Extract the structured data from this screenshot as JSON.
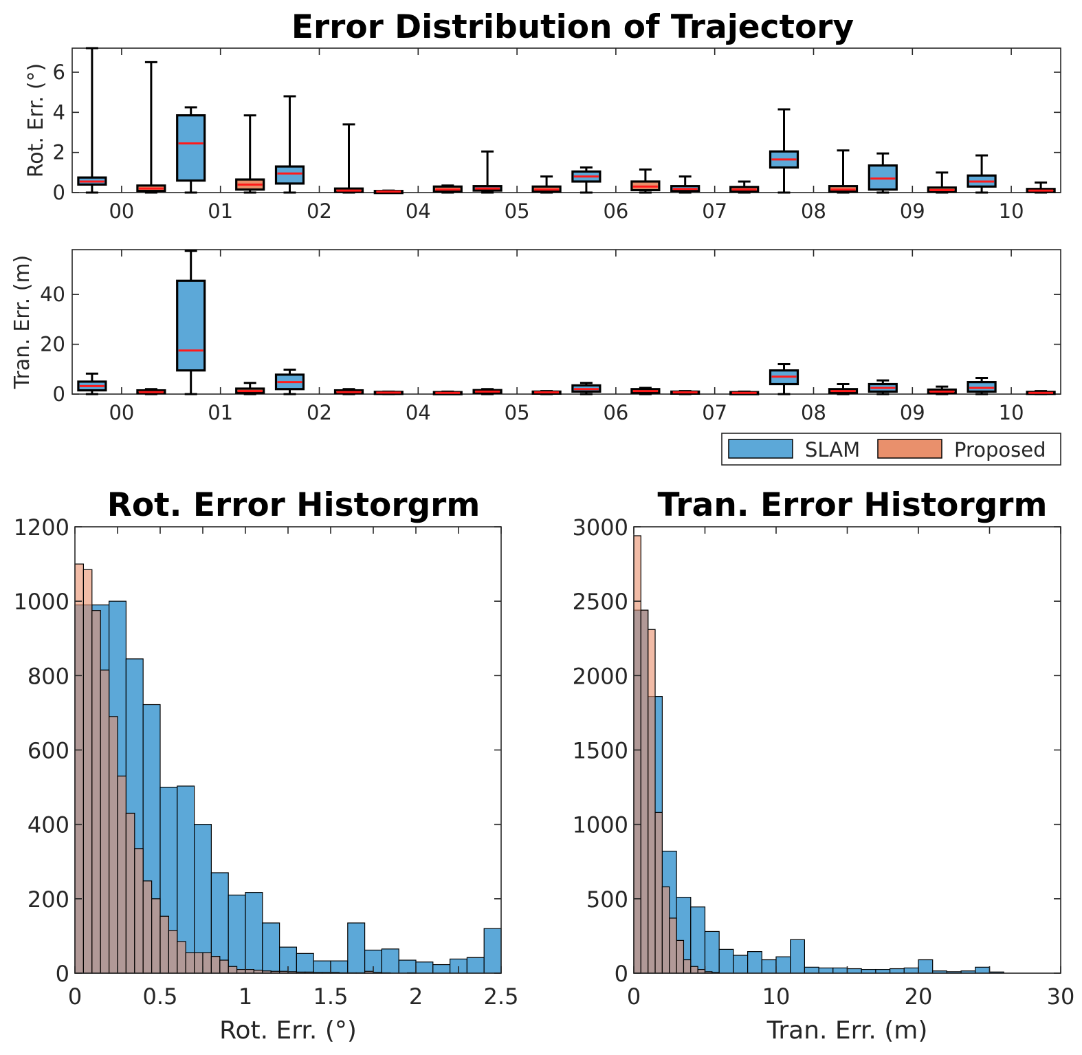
{
  "figure_title": "Error Distribution of Trajectory",
  "colors": {
    "slam": "#5ca8d8",
    "proposed": "#e9906c",
    "overlap": "#a96b5c",
    "median": "#ff1a1a",
    "axis": "#262626"
  },
  "legend": {
    "items": [
      "SLAM",
      "Proposed"
    ],
    "position": "below-right of box plots"
  },
  "chart_data": [
    {
      "type": "box",
      "ylabel": "Rot. Err. (°)",
      "ylim": [
        0,
        7.2
      ],
      "yticks": [
        0,
        2,
        4,
        6
      ],
      "categories": [
        "00",
        "01",
        "02",
        "04",
        "05",
        "06",
        "07",
        "08",
        "09",
        "10"
      ],
      "series": [
        {
          "name": "SLAM",
          "boxes": [
            {
              "min": 0,
              "q1": 0.4,
              "median": 0.55,
              "q3": 0.75,
              "max": 7.2
            },
            {
              "min": 0,
              "q1": 0.6,
              "median": 2.45,
              "q3": 3.85,
              "max": 4.25
            },
            {
              "min": 0,
              "q1": 0.45,
              "median": 0.95,
              "q3": 1.3,
              "max": 4.8
            },
            {
              "min": 0,
              "q1": 0.02,
              "median": 0.05,
              "q3": 0.08,
              "max": 0.1
            },
            {
              "min": 0,
              "q1": 0.1,
              "median": 0.2,
              "q3": 0.32,
              "max": 2.05
            },
            {
              "min": 0,
              "q1": 0.55,
              "median": 0.8,
              "q3": 1.05,
              "max": 1.25
            },
            {
              "min": 0,
              "q1": 0.08,
              "median": 0.18,
              "q3": 0.32,
              "max": 0.8
            },
            {
              "min": 0,
              "q1": 1.25,
              "median": 1.65,
              "q3": 2.05,
              "max": 4.15
            },
            {
              "min": 0,
              "q1": 0.15,
              "median": 0.7,
              "q3": 1.35,
              "max": 1.95
            },
            {
              "min": 0,
              "q1": 0.3,
              "median": 0.55,
              "q3": 0.85,
              "max": 1.85
            }
          ]
        },
        {
          "name": "Proposed",
          "boxes": [
            {
              "min": 0,
              "q1": 0.08,
              "median": 0.2,
              "q3": 0.35,
              "max": 6.5
            },
            {
              "min": 0,
              "q1": 0.15,
              "median": 0.4,
              "q3": 0.65,
              "max": 3.85
            },
            {
              "min": 0,
              "q1": 0.03,
              "median": 0.1,
              "q3": 0.2,
              "max": 3.4
            },
            {
              "min": 0,
              "q1": 0.05,
              "median": 0.15,
              "q3": 0.3,
              "max": 0.35
            },
            {
              "min": 0,
              "q1": 0.05,
              "median": 0.15,
              "q3": 0.3,
              "max": 0.8
            },
            {
              "min": 0,
              "q1": 0.12,
              "median": 0.3,
              "q3": 0.55,
              "max": 1.15
            },
            {
              "min": 0,
              "q1": 0.05,
              "median": 0.15,
              "q3": 0.28,
              "max": 0.55
            },
            {
              "min": 0,
              "q1": 0.05,
              "median": 0.15,
              "q3": 0.32,
              "max": 2.1
            },
            {
              "min": 0,
              "q1": 0.04,
              "median": 0.12,
              "q3": 0.25,
              "max": 1.0
            },
            {
              "min": 0,
              "q1": 0.03,
              "median": 0.1,
              "q3": 0.18,
              "max": 0.5
            }
          ]
        }
      ]
    },
    {
      "type": "box",
      "ylabel": "Tran. Err. (m)",
      "ylim": [
        0,
        58
      ],
      "yticks": [
        0,
        20,
        40
      ],
      "categories": [
        "00",
        "01",
        "02",
        "04",
        "05",
        "06",
        "07",
        "08",
        "09",
        "10"
      ],
      "series": [
        {
          "name": "SLAM",
          "boxes": [
            {
              "min": 0,
              "q1": 1.5,
              "median": 3.2,
              "q3": 5,
              "max": 8.2
            },
            {
              "min": 0,
              "q1": 9.5,
              "median": 17.5,
              "q3": 45.5,
              "max": 57.5
            },
            {
              "min": 0,
              "q1": 2,
              "median": 4.8,
              "q3": 7.8,
              "max": 9.8
            },
            {
              "min": 0,
              "q1": 0.3,
              "median": 0.6,
              "q3": 0.9,
              "max": 1
            },
            {
              "min": 0,
              "q1": 0.5,
              "median": 1,
              "q3": 1.6,
              "max": 2
            },
            {
              "min": 0,
              "q1": 1,
              "median": 2,
              "q3": 3.5,
              "max": 4.5
            },
            {
              "min": 0,
              "q1": 0.3,
              "median": 0.7,
              "q3": 1,
              "max": 1.2
            },
            {
              "min": 0,
              "q1": 4,
              "median": 7,
              "q3": 9.5,
              "max": 12
            },
            {
              "min": 0,
              "q1": 1,
              "median": 2.5,
              "q3": 4,
              "max": 5.5
            },
            {
              "min": 0,
              "q1": 1,
              "median": 2.5,
              "q3": 4.8,
              "max": 6.5
            }
          ]
        },
        {
          "name": "Proposed",
          "boxes": [
            {
              "min": 0,
              "q1": 0.3,
              "median": 0.8,
              "q3": 1.5,
              "max": 2
            },
            {
              "min": 0,
              "q1": 0.5,
              "median": 1.2,
              "q3": 2.2,
              "max": 4.5
            },
            {
              "min": 0,
              "q1": 0.3,
              "median": 0.8,
              "q3": 1.5,
              "max": 2
            },
            {
              "min": 0,
              "q1": 0.2,
              "median": 0.5,
              "q3": 0.8,
              "max": 1
            },
            {
              "min": 0,
              "q1": 0.3,
              "median": 0.7,
              "q3": 1,
              "max": 1.2
            },
            {
              "min": 0,
              "q1": 0.5,
              "median": 1.2,
              "q3": 2,
              "max": 2.5
            },
            {
              "min": 0,
              "q1": 0.2,
              "median": 0.5,
              "q3": 0.8,
              "max": 1
            },
            {
              "min": 0,
              "q1": 0.5,
              "median": 1.2,
              "q3": 2,
              "max": 4
            },
            {
              "min": 0,
              "q1": 0.4,
              "median": 1,
              "q3": 1.8,
              "max": 3
            },
            {
              "min": 0,
              "q1": 0.2,
              "median": 0.5,
              "q3": 0.9,
              "max": 1.2
            }
          ]
        }
      ]
    },
    {
      "type": "histogram",
      "title": "Rot. Error Historgrm",
      "xlabel": "Rot. Err. (°)",
      "xlim": [
        0,
        2.5
      ],
      "ylim": [
        0,
        1200
      ],
      "xticks": [
        0,
        0.5,
        1,
        1.5,
        2,
        2.5
      ],
      "xtick_labels": [
        "0",
        "0.5",
        "1",
        "1.5",
        "2",
        "2.5"
      ],
      "yticks": [
        0,
        200,
        400,
        600,
        800,
        1000,
        1200
      ],
      "series": [
        {
          "name": "SLAM",
          "bin_start": 0,
          "bin_width": 0.1,
          "counts": [
            990,
            990,
            1000,
            845,
            722,
            500,
            503,
            400,
            270,
            210,
            217,
            135,
            70,
            53,
            33,
            33,
            135,
            62,
            65,
            35,
            30,
            23,
            38,
            42,
            120
          ]
        },
        {
          "name": "Proposed",
          "bin_start": 0,
          "bin_width": 0.05,
          "counts": [
            1100,
            1085,
            975,
            815,
            690,
            530,
            430,
            335,
            248,
            200,
            153,
            115,
            85,
            55,
            55,
            55,
            45,
            35,
            18,
            10,
            10,
            8,
            6,
            5,
            5,
            4,
            3,
            3,
            2,
            2,
            2,
            1,
            1,
            1,
            5,
            2,
            1,
            0,
            0,
            1,
            0,
            0,
            0,
            0,
            0,
            0,
            0,
            0,
            0,
            0
          ]
        }
      ]
    },
    {
      "type": "histogram",
      "title": "Tran. Error Historgrm",
      "xlabel": "Tran. Err. (m)",
      "xlim": [
        0,
        30
      ],
      "ylim": [
        0,
        3000
      ],
      "xticks": [
        0,
        10,
        20,
        30
      ],
      "xtick_labels": [
        "0",
        "10",
        "20",
        "30"
      ],
      "yticks": [
        0,
        500,
        1000,
        1500,
        2000,
        2500,
        3000
      ],
      "series": [
        {
          "name": "SLAM",
          "bin_start": 0,
          "bin_width": 1,
          "counts": [
            2440,
            1860,
            820,
            510,
            445,
            280,
            160,
            120,
            145,
            90,
            110,
            225,
            40,
            35,
            35,
            30,
            25,
            25,
            30,
            35,
            90,
            15,
            10,
            15,
            40,
            8,
            0,
            0,
            0,
            0
          ]
        },
        {
          "name": "Proposed",
          "bin_start": 0,
          "bin_width": 0.5,
          "counts": [
            2940,
            2440,
            2310,
            1080,
            580,
            370,
            220,
            90,
            45,
            25,
            10,
            5
          ]
        }
      ]
    }
  ]
}
